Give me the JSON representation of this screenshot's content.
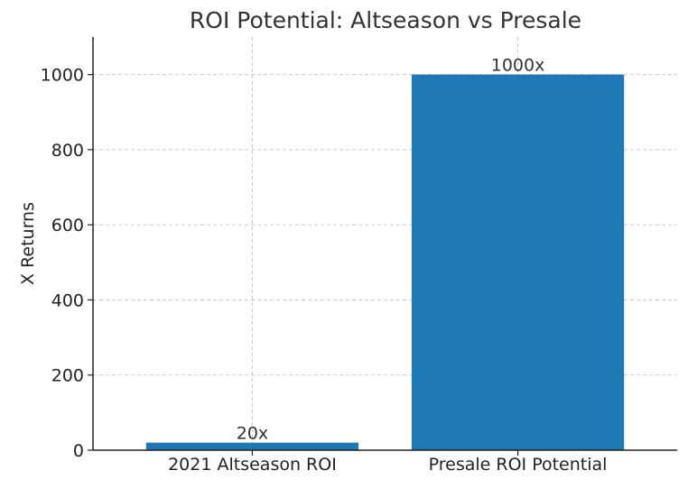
{
  "chart_data": {
    "type": "bar",
    "title": "ROI Potential: Altseason vs Presale",
    "xlabel": "",
    "ylabel": "X Returns",
    "categories": [
      "2021 Altseason ROI",
      "Presale ROI Potential"
    ],
    "values": [
      20,
      1000
    ],
    "data_labels": [
      "20x",
      "1000x"
    ],
    "ylim": [
      0,
      1100
    ],
    "yticks": [
      0,
      200,
      400,
      600,
      800,
      1000
    ],
    "ytick_labels": [
      "0",
      "200",
      "400",
      "600",
      "800",
      "1000"
    ],
    "grid": true,
    "bar_color": "#1f77b4"
  }
}
